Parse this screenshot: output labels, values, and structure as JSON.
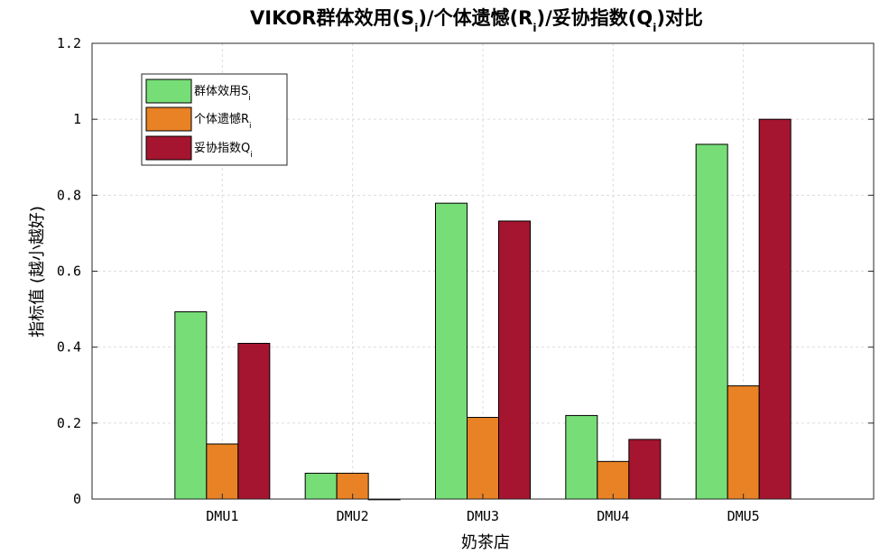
{
  "chart_data": {
    "type": "bar",
    "title": {
      "parts": [
        "VIKOR群体效用(S",
        "i",
        ")/个体遗憾(R",
        "i",
        ")/妥协指数(Q",
        "i",
        ")对比"
      ]
    },
    "xlabel": "奶茶店",
    "ylabel": "指标值 (越小越好)",
    "categories": [
      "DMU1",
      "DMU2",
      "DMU3",
      "DMU4",
      "DMU5"
    ],
    "ylim": [
      0,
      1.2
    ],
    "yticks": [
      "0",
      "0.2",
      "0.4",
      "0.6",
      "0.8",
      "1",
      "1.2"
    ],
    "ytick_values": [
      0,
      0.2,
      0.4,
      0.6,
      0.8,
      1.0,
      1.2
    ],
    "grid": true,
    "legend_position": "top-left",
    "series": [
      {
        "name": "群体效用S",
        "subscript": "i",
        "color": "#77dd77",
        "values": [
          0.493,
          0.068,
          0.779,
          0.22,
          0.934
        ]
      },
      {
        "name": "个体遗憾R",
        "subscript": "i",
        "color": "#e88224",
        "values": [
          0.145,
          0.068,
          0.215,
          0.099,
          0.298
        ]
      },
      {
        "name": "妥协指数Q",
        "subscript": "i",
        "color": "#a51530",
        "values": [
          0.41,
          0.0,
          0.732,
          0.157,
          1.0
        ]
      }
    ]
  }
}
